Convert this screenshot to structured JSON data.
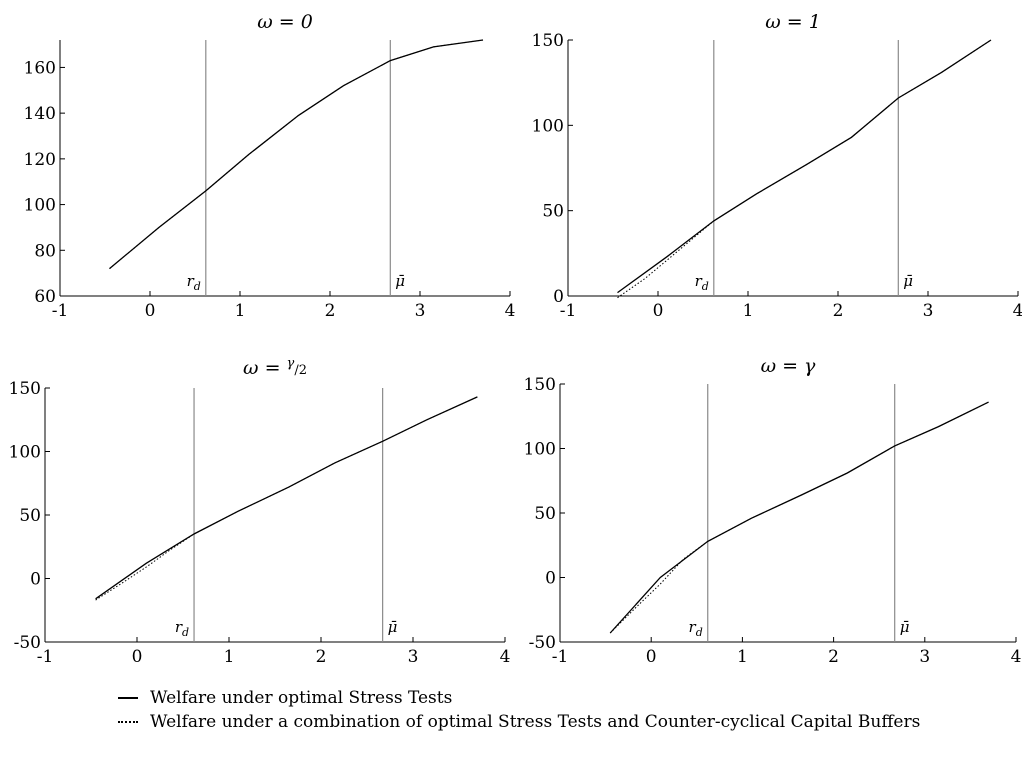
{
  "chart_data": [
    {
      "type": "line",
      "title": "ω = 0",
      "xlim": [
        -1,
        4
      ],
      "ylim": [
        60,
        172
      ],
      "xticks": [
        -1,
        0,
        1,
        2,
        3,
        4
      ],
      "xtick_labels": [
        "-1",
        "0",
        "1",
        "2",
        "3",
        "4"
      ],
      "yticks": [
        60,
        80,
        100,
        120,
        140,
        160
      ],
      "ytick_labels": [
        "60",
        "80",
        "100",
        "120",
        "140",
        "160"
      ],
      "vlines": [
        {
          "x": 0.62,
          "label": "r_d"
        },
        {
          "x": 2.67,
          "label": "μ̄"
        }
      ],
      "series": [
        {
          "style": "solid",
          "x": [
            -0.45,
            0.1,
            0.62,
            1.1,
            1.65,
            2.15,
            2.67,
            3.15,
            3.7
          ],
          "y": [
            72,
            90,
            106,
            122,
            139,
            152,
            163,
            169,
            172
          ]
        },
        {
          "style": "dotted",
          "x": [
            -0.45,
            0.1,
            0.62,
            1.1,
            1.65,
            2.15,
            2.67,
            3.15,
            3.7
          ],
          "y": [
            72,
            90,
            106,
            122,
            139,
            152,
            163,
            169,
            172
          ]
        }
      ]
    },
    {
      "type": "line",
      "title": "ω = 1",
      "xlim": [
        -1,
        4
      ],
      "ylim": [
        0,
        150
      ],
      "xticks": [
        -1,
        0,
        1,
        2,
        3,
        4
      ],
      "xtick_labels": [
        "-1",
        "0",
        "1",
        "2",
        "3",
        "4"
      ],
      "yticks": [
        0,
        50,
        100,
        150
      ],
      "ytick_labels": [
        "0",
        "50",
        "100",
        "150"
      ],
      "vlines": [
        {
          "x": 0.62,
          "label": "r_d"
        },
        {
          "x": 2.67,
          "label": "μ̄"
        }
      ],
      "series": [
        {
          "style": "solid",
          "x": [
            -0.45,
            0.1,
            0.62,
            1.1,
            1.65,
            2.15,
            2.67,
            3.15,
            3.7
          ],
          "y": [
            2,
            23,
            44,
            60,
            77,
            93,
            116,
            131,
            150
          ]
        },
        {
          "style": "dotted",
          "x": [
            -0.45,
            -0.15,
            0.1,
            0.62,
            1.1,
            1.65,
            2.15,
            2.67,
            3.15,
            3.7
          ],
          "y": [
            -1,
            10,
            21,
            44,
            60,
            77,
            93,
            116,
            131,
            150
          ]
        }
      ]
    },
    {
      "type": "line",
      "title": "ω = γ/2",
      "xlim": [
        -1,
        4
      ],
      "ylim": [
        -50,
        150
      ],
      "xticks": [
        -1,
        0,
        1,
        2,
        3,
        4
      ],
      "xtick_labels": [
        "-1",
        "0",
        "1",
        "2",
        "3",
        "4"
      ],
      "yticks": [
        -50,
        0,
        50,
        100,
        150
      ],
      "ytick_labels": [
        "-50",
        "0",
        "50",
        "100",
        "150"
      ],
      "vlines": [
        {
          "x": 0.62,
          "label": "r_d"
        },
        {
          "x": 2.67,
          "label": "μ̄"
        }
      ],
      "series": [
        {
          "style": "solid",
          "x": [
            -0.45,
            0.1,
            0.62,
            1.1,
            1.65,
            2.15,
            2.67,
            3.15,
            3.7
          ],
          "y": [
            -16,
            12,
            35,
            53,
            72,
            91,
            108,
            125,
            143
          ]
        },
        {
          "style": "dotted",
          "x": [
            -0.45,
            -0.15,
            0.1,
            0.35,
            0.62,
            1.1,
            1.65,
            2.15,
            2.67,
            3.15,
            3.7
          ],
          "y": [
            -17,
            -3,
            9,
            22,
            35,
            53,
            72,
            91,
            108,
            125,
            143
          ]
        }
      ]
    },
    {
      "type": "line",
      "title": "ω = γ",
      "xlim": [
        -1,
        4
      ],
      "ylim": [
        -50,
        150
      ],
      "xticks": [
        -1,
        0,
        1,
        2,
        3,
        4
      ],
      "xtick_labels": [
        "-1",
        "0",
        "1",
        "2",
        "3",
        "4"
      ],
      "yticks": [
        -50,
        0,
        50,
        100,
        150
      ],
      "ytick_labels": [
        "-50",
        "0",
        "50",
        "100",
        "150"
      ],
      "vlines": [
        {
          "x": 0.62,
          "label": "r_d"
        },
        {
          "x": 2.67,
          "label": "μ̄"
        }
      ],
      "series": [
        {
          "style": "solid",
          "x": [
            -0.45,
            0.1,
            0.62,
            1.1,
            1.65,
            2.15,
            2.67,
            3.15,
            3.7
          ],
          "y": [
            -43,
            0,
            28,
            46,
            64,
            81,
            102,
            117,
            136
          ]
        },
        {
          "style": "dotted",
          "x": [
            -0.45,
            -0.15,
            0.1,
            0.35,
            0.62,
            1.1,
            1.65,
            2.15,
            2.67,
            3.15,
            3.7
          ],
          "y": [
            -43,
            -22,
            -5,
            14,
            28,
            46,
            64,
            81,
            102,
            117,
            136
          ]
        }
      ]
    }
  ],
  "legend": {
    "solid_label": "Welfare under optimal Stress Tests",
    "dotted_label": "Welfare under a combination of optimal Stress Tests and Counter-cyclical Capital Buffers"
  }
}
